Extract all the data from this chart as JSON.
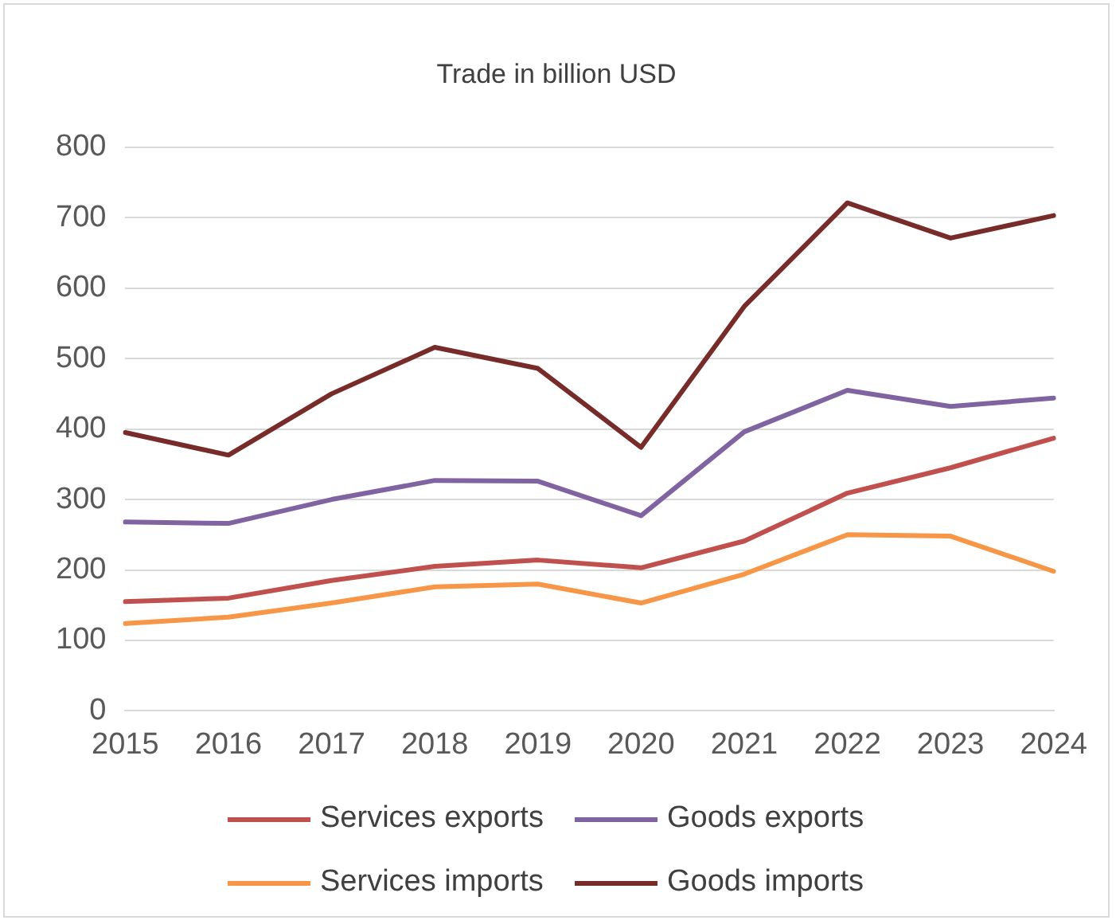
{
  "chart_data": {
    "type": "line",
    "title": "Trade in billion USD",
    "categories": [
      "2015",
      "2016",
      "2017",
      "2018",
      "2019",
      "2020",
      "2021",
      "2022",
      "2023",
      "2024"
    ],
    "series": [
      {
        "name": "Services exports",
        "color": "#c0504d",
        "values": [
          155,
          160,
          185,
          205,
          214,
          203,
          241,
          309,
          345,
          387
        ]
      },
      {
        "name": "Goods exports",
        "color": "#8064a2",
        "values": [
          268,
          266,
          300,
          327,
          326,
          277,
          396,
          455,
          432,
          444
        ]
      },
      {
        "name": "Services imports",
        "color": "#f79646",
        "values": [
          124,
          133,
          153,
          176,
          180,
          153,
          194,
          250,
          248,
          198
        ]
      },
      {
        "name": "Goods imports",
        "color": "#772c2a",
        "values": [
          395,
          363,
          450,
          516,
          486,
          374,
          574,
          721,
          671,
          703
        ]
      }
    ],
    "ylim": [
      0,
      800
    ],
    "yticks": [
      0,
      100,
      200,
      300,
      400,
      500,
      600,
      700,
      800
    ],
    "grid": "y",
    "legend": "bottom",
    "marker": "none",
    "line_style": "solid"
  }
}
